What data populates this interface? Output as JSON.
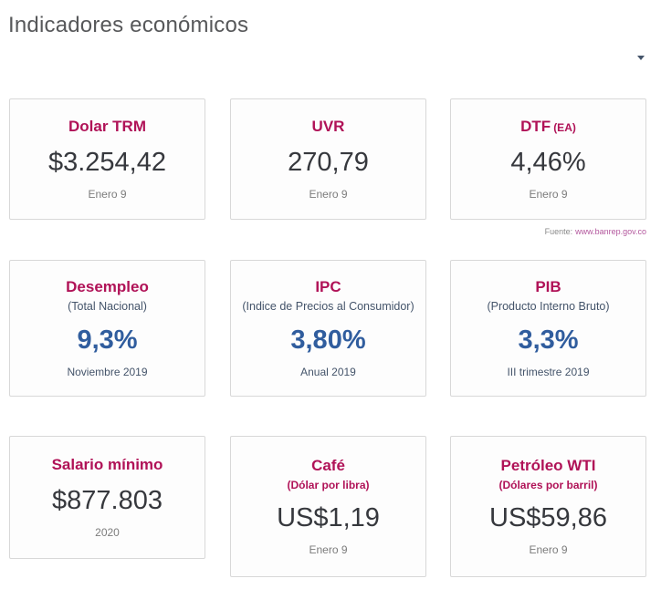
{
  "page": {
    "title": "Indicadores económicos"
  },
  "dropdown": {
    "icon": "caret-down"
  },
  "source": {
    "prefix": "Fuente:",
    "link": "www.banrep.gov.co"
  },
  "colors": {
    "accent": "#B01257",
    "value_dark": "#36383D",
    "value_blue": "#305D9E",
    "navy": "#44546A",
    "date_gray": "#7C7C7C",
    "title_gray": "#57585A",
    "link_pink": "#B3579D",
    "card_border": "#D8D8D8"
  },
  "cards": [
    {
      "id": "dolar-trm",
      "title": "Dolar TRM",
      "value": "$3.254,42",
      "date": "Enero 9"
    },
    {
      "id": "uvr",
      "title": "UVR",
      "value": "270,79",
      "date": "Enero 9"
    },
    {
      "id": "dtf",
      "title": "DTF",
      "title_suffix": "(EA)",
      "value": "4,46%",
      "date": "Enero 9"
    },
    {
      "id": "desempleo",
      "title": "Desempleo",
      "subtitle": "(Total Nacional)",
      "value": "9,3%",
      "date": "Noviembre 2019"
    },
    {
      "id": "ipc",
      "title": "IPC",
      "subtitle": "(Indice de Precios al Consumidor)",
      "value": "3,80%",
      "date": "Anual 2019"
    },
    {
      "id": "pib",
      "title": "PIB",
      "subtitle": "(Producto Interno Bruto)",
      "value": "3,3%",
      "date": "III trimestre 2019"
    },
    {
      "id": "salario-minimo",
      "title": "Salario mínimo",
      "value": "$877.803",
      "date": "2020"
    },
    {
      "id": "cafe",
      "title": "Café",
      "subtitle": "(Dólar por libra)",
      "value": "US$1,19",
      "date": "Enero 9"
    },
    {
      "id": "petroleo-wti",
      "title": "Petróleo WTI",
      "subtitle": "(Dólares por barril)",
      "value": "US$59,86",
      "date": "Enero 9"
    }
  ]
}
